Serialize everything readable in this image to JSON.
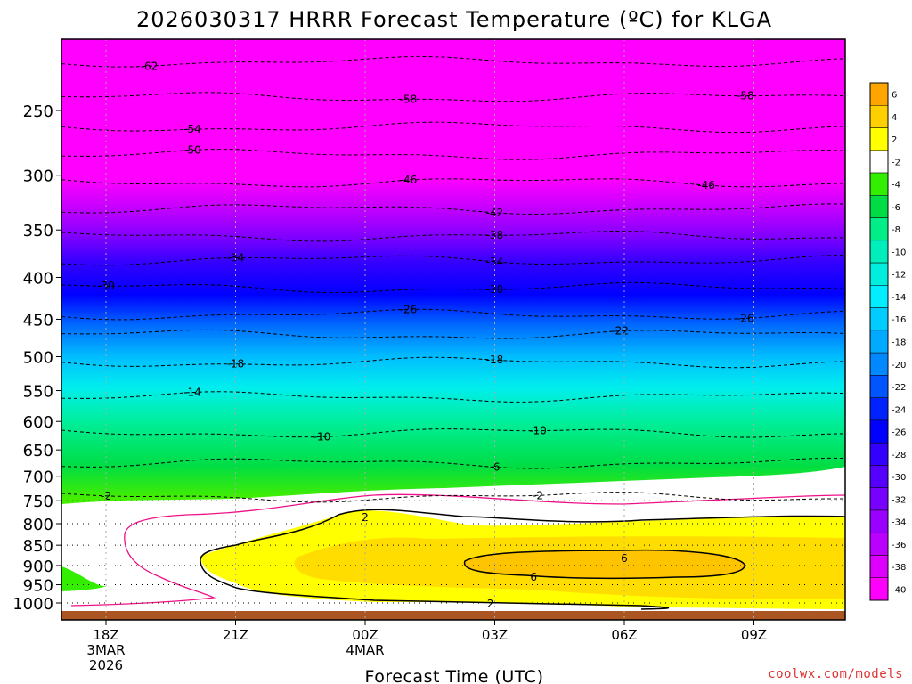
{
  "chart_data": {
    "type": "heatmap",
    "title": "2026030317 HRRR Forecast Temperature (ºC) for KLGA",
    "xlabel": "Forecast Time (UTC)",
    "ylabel": "",
    "credit": "coolwx.com/models",
    "x_range_hours": [
      -1,
      17
    ],
    "y_range_hpa": [
      1040,
      200
    ],
    "x_ticks": [
      {
        "h": 0,
        "lines": [
          "18Z",
          "3MAR",
          "2026"
        ]
      },
      {
        "h": 3,
        "lines": [
          "21Z"
        ]
      },
      {
        "h": 6,
        "lines": [
          "00Z",
          "4MAR"
        ]
      },
      {
        "h": 9,
        "lines": [
          "03Z"
        ]
      },
      {
        "h": 12,
        "lines": [
          "06Z"
        ]
      },
      {
        "h": 15,
        "lines": [
          "09Z"
        ]
      }
    ],
    "y_ticks": [
      250,
      300,
      350,
      400,
      450,
      500,
      550,
      600,
      650,
      700,
      750,
      800,
      850,
      900,
      950,
      1000
    ],
    "colorbar": {
      "labels": [
        "6",
        "4",
        "2",
        "-2",
        "-4",
        "-6",
        "-8",
        "-10",
        "-12",
        "-14",
        "-16",
        "-18",
        "-20",
        "-22",
        "-24",
        "-26",
        "-28",
        "-30",
        "-32",
        "-34",
        "-36",
        "-38",
        "-40"
      ],
      "colors": [
        "#ffa500",
        "#ffd000",
        "#ffff00",
        "#ffffff",
        "#33ee00",
        "#00dd44",
        "#00ee88",
        "#00eebb",
        "#00eedd",
        "#00eeff",
        "#00ccff",
        "#00aaff",
        "#0088ff",
        "#0055ff",
        "#0022ff",
        "#0000ff",
        "#3300ff",
        "#5500ff",
        "#7700ff",
        "#9900ff",
        "#bb00ff",
        "#dd00ff",
        "#ff00ff"
      ]
    },
    "isotherms": [
      {
        "t": -62,
        "p": 218,
        "label_h": 1.0
      },
      {
        "t": -58,
        "p": 241,
        "label_h": 7.0
      },
      {
        "t": -58,
        "p": 241,
        "label_h": 14.8
      },
      {
        "t": -54,
        "p": 262,
        "label_h": 2.0
      },
      {
        "t": -50,
        "p": 283,
        "label_h": 2.0
      },
      {
        "t": -46,
        "p": 306,
        "label_h": 7.0
      },
      {
        "t": -46,
        "p": 306,
        "label_h": 13.9
      },
      {
        "t": -42,
        "p": 330,
        "label_h": 9.0
      },
      {
        "t": -38,
        "p": 356,
        "label_h": 9.0
      },
      {
        "t": -34,
        "p": 381,
        "label_h": 3.0
      },
      {
        "t": -34,
        "p": 381,
        "label_h": 9.0
      },
      {
        "t": -30,
        "p": 412,
        "label_h": 0.0
      },
      {
        "t": -30,
        "p": 412,
        "label_h": 9.0
      },
      {
        "t": -26,
        "p": 444,
        "label_h": 7.0
      },
      {
        "t": -26,
        "p": 444,
        "label_h": 14.8
      },
      {
        "t": -22,
        "p": 470,
        "label_h": 11.9
      },
      {
        "t": -18,
        "p": 508,
        "label_h": 3.0
      },
      {
        "t": -18,
        "p": 508,
        "label_h": 9.0
      },
      {
        "t": -14,
        "p": 560,
        "label_h": 2.0
      },
      {
        "t": -10,
        "p": 619,
        "label_h": 5.0
      },
      {
        "t": -10,
        "p": 619,
        "label_h": 10.0
      },
      {
        "t": -6,
        "p": 675,
        "label_h": 9.0
      },
      {
        "t": -2,
        "p": 742,
        "label_h": 0.0
      },
      {
        "t": -2,
        "p": 742,
        "label_h": 10.0
      }
    ],
    "warm_contours": [
      {
        "t": 2,
        "label_h": 6.0,
        "label_p": 786
      },
      {
        "t": 2,
        "label_h": 8.9,
        "label_p": 1003
      },
      {
        "t": 6,
        "label_h": 12.0,
        "label_p": 882
      },
      {
        "t": 6,
        "label_h": 9.9,
        "label_p": 930
      }
    ]
  }
}
